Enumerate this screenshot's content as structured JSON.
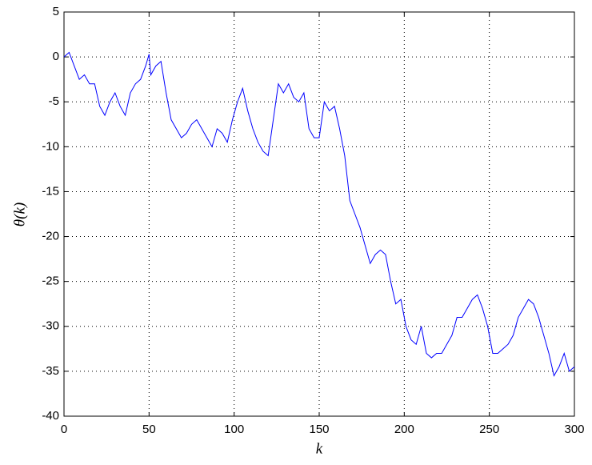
{
  "chart_data": {
    "type": "line",
    "xlabel": "k",
    "ylabel": "θ(k)",
    "x": [
      0,
      3,
      6,
      9,
      12,
      15,
      18,
      21,
      24,
      27,
      30,
      33,
      36,
      39,
      42,
      45,
      48,
      50,
      51,
      54,
      57,
      60,
      63,
      66,
      69,
      72,
      75,
      78,
      81,
      84,
      87,
      90,
      93,
      96,
      99,
      102,
      105,
      108,
      111,
      114,
      117,
      120,
      123,
      126,
      129,
      132,
      135,
      138,
      141,
      144,
      147,
      150,
      153,
      156,
      159,
      162,
      165,
      168,
      171,
      174,
      177,
      180,
      183,
      186,
      189,
      192,
      195,
      198,
      201,
      204,
      207,
      210,
      213,
      216,
      219,
      222,
      225,
      228,
      231,
      234,
      237,
      240,
      243,
      246,
      249,
      252,
      255,
      258,
      261,
      264,
      267,
      270,
      273,
      276,
      279,
      282,
      285,
      288,
      291,
      294,
      297,
      300
    ],
    "series": [
      {
        "color": "#0000ff",
        "values": [
          0,
          0.5,
          -1,
          -2.5,
          -2,
          -3,
          -3,
          -5.5,
          -6.5,
          -5,
          -4,
          -5.5,
          -6.5,
          -4,
          -3,
          -2.5,
          -1,
          0.3,
          -2,
          -1,
          -0.5,
          -4,
          -7,
          -8,
          -9,
          -8.5,
          -7.5,
          -7,
          -8,
          -9,
          -10,
          -8,
          -8.5,
          -9.5,
          -7,
          -5,
          -3.5,
          -6,
          -8,
          -9.5,
          -10.5,
          -11,
          -7,
          -3,
          -4,
          -3,
          -4.5,
          -5,
          -4,
          -8,
          -9,
          -9,
          -5,
          -6,
          -5.5,
          -8,
          -11,
          -16,
          -17.5,
          -19,
          -21,
          -23,
          -22,
          -21.5,
          -22,
          -25,
          -27.5,
          -27,
          -30,
          -31.5,
          -32,
          -30,
          -33,
          -33.5,
          -33,
          -33,
          -32,
          -31,
          -29,
          -29,
          -28,
          -27,
          -26.5,
          -28,
          -30,
          -33,
          -33,
          -32.5,
          -32,
          -31,
          -29,
          -28,
          -27,
          -27.5,
          -29,
          -31,
          -33,
          -35.5,
          -34.5,
          -33,
          -35,
          -34.5
        ]
      }
    ],
    "xlim": [
      0,
      300
    ],
    "xticks": [
      0,
      50,
      100,
      150,
      200,
      250,
      300
    ],
    "ylim": [
      -40,
      5
    ],
    "yticks": [
      -40,
      -35,
      -30,
      -25,
      -20,
      -15,
      -10,
      -5,
      0,
      5
    ],
    "grid": true
  }
}
